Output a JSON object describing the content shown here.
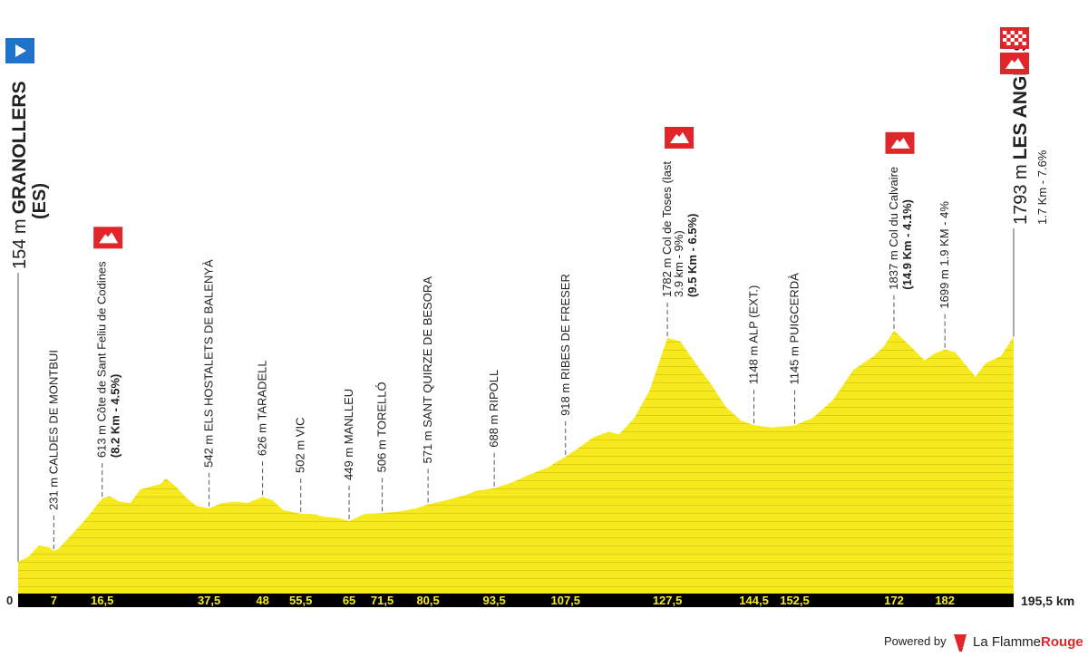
{
  "chart_data": {
    "type": "area",
    "color": "#f6ea1f",
    "stripe_color": "#dccf16",
    "x": [
      0,
      2,
      4,
      6,
      7,
      8,
      10,
      13,
      16.5,
      18,
      20,
      22,
      24,
      26,
      28,
      29,
      31,
      33,
      35,
      37.5,
      40,
      43,
      45,
      48,
      50,
      52,
      55.5,
      58,
      60,
      63,
      65,
      68,
      71.5,
      75,
      78,
      80.5,
      84,
      88,
      90,
      93.5,
      97,
      100,
      104,
      107.5,
      110,
      113,
      116,
      118,
      121,
      124,
      126,
      127.5,
      130,
      133,
      136,
      139,
      142,
      144.5,
      148,
      152.5,
      156,
      160,
      164,
      168,
      170,
      172,
      175,
      178,
      180,
      182,
      184,
      188,
      190,
      193,
      195.5
    ],
    "values": [
      154,
      190,
      270,
      260,
      231,
      250,
      330,
      450,
      613,
      630,
      590,
      580,
      680,
      700,
      720,
      760,
      700,
      620,
      560,
      542,
      580,
      590,
      580,
      626,
      600,
      530,
      502,
      500,
      480,
      470,
      449,
      500,
      506,
      520,
      540,
      571,
      600,
      640,
      670,
      688,
      730,
      780,
      840,
      918,
      980,
      1060,
      1100,
      1080,
      1200,
      1400,
      1620,
      1782,
      1760,
      1600,
      1450,
      1280,
      1180,
      1148,
      1130,
      1145,
      1200,
      1330,
      1550,
      1650,
      1720,
      1837,
      1730,
      1620,
      1670,
      1699,
      1680,
      1500,
      1600,
      1650,
      1793
    ],
    "xlim": [
      0,
      195.5
    ],
    "ylim": [
      0,
      2000
    ],
    "xticks": [
      0,
      7,
      {
        "value": 16.5,
        "label": "16,5"
      },
      {
        "value": 37.5,
        "label": "37,5"
      },
      48,
      {
        "value": 55.5,
        "label": "55,5"
      },
      65,
      {
        "value": 71.5,
        "label": "71,5"
      },
      {
        "value": 80.5,
        "label": "80,5"
      },
      {
        "value": 93.5,
        "label": "93,5"
      },
      {
        "value": 107.5,
        "label": "107,5"
      },
      {
        "value": 127.5,
        "label": "127,5"
      },
      {
        "value": 144.5,
        "label": "144,5"
      },
      {
        "value": 152.5,
        "label": "152,5"
      },
      172,
      182,
      {
        "value": 195.5,
        "label": "195,5 km"
      }
    ],
    "start": {
      "altitude": "154 m",
      "name": "GRANOLLERS",
      "country": "(ES)"
    },
    "finish": {
      "altitude": "1793 m",
      "name": "LES ANGLES",
      "detail": "1.7 Km - 7.6%",
      "climb": true
    },
    "waypoints": [
      {
        "lines": [
          "231 m CALDES DE MONTBUI"
        ]
      },
      {
        "lines": [
          "613 m Côte de Sant Feliu de Codines"
        ],
        "bold": "(8.2 Km - 4.5%)",
        "climb": true
      },
      {
        "lines": [
          "542 m ELS HOSTALETS DE BALENYÀ"
        ]
      },
      {
        "lines": [
          "626 m TARADELL"
        ]
      },
      {
        "lines": [
          "502 m VIC"
        ]
      },
      {
        "lines": [
          "449 m MANLLEU"
        ]
      },
      {
        "lines": [
          "506 m TORELLÓ"
        ]
      },
      {
        "lines": [
          "571 m SANT QUIRZE DE BESORA"
        ]
      },
      {
        "lines": [
          "688 m RIPOLL"
        ]
      },
      {
        "lines": [
          "918 m RIBES DE FRESER"
        ]
      },
      {
        "lines": [
          "1782 m Col de Toses (last",
          "3.9 km - 9%)"
        ],
        "bold": "(9.5 Km - 6.5%)",
        "climb": true
      },
      {
        "lines": [
          "1148 m ALP (EXT.)"
        ]
      },
      {
        "lines": [
          "1145 m PUIGCERDÀ"
        ]
      },
      {
        "lines": [
          "1837 m Col du Calvaire"
        ],
        "bold": "(14.9 Km - 4.1%)",
        "climb": true
      },
      {
        "lines": [
          "1699 m 1.9 KM - 4%"
        ]
      }
    ]
  },
  "footer": {
    "powered": "Powered by",
    "brand": "La Flamme",
    "brand_accent": "Rouge"
  }
}
